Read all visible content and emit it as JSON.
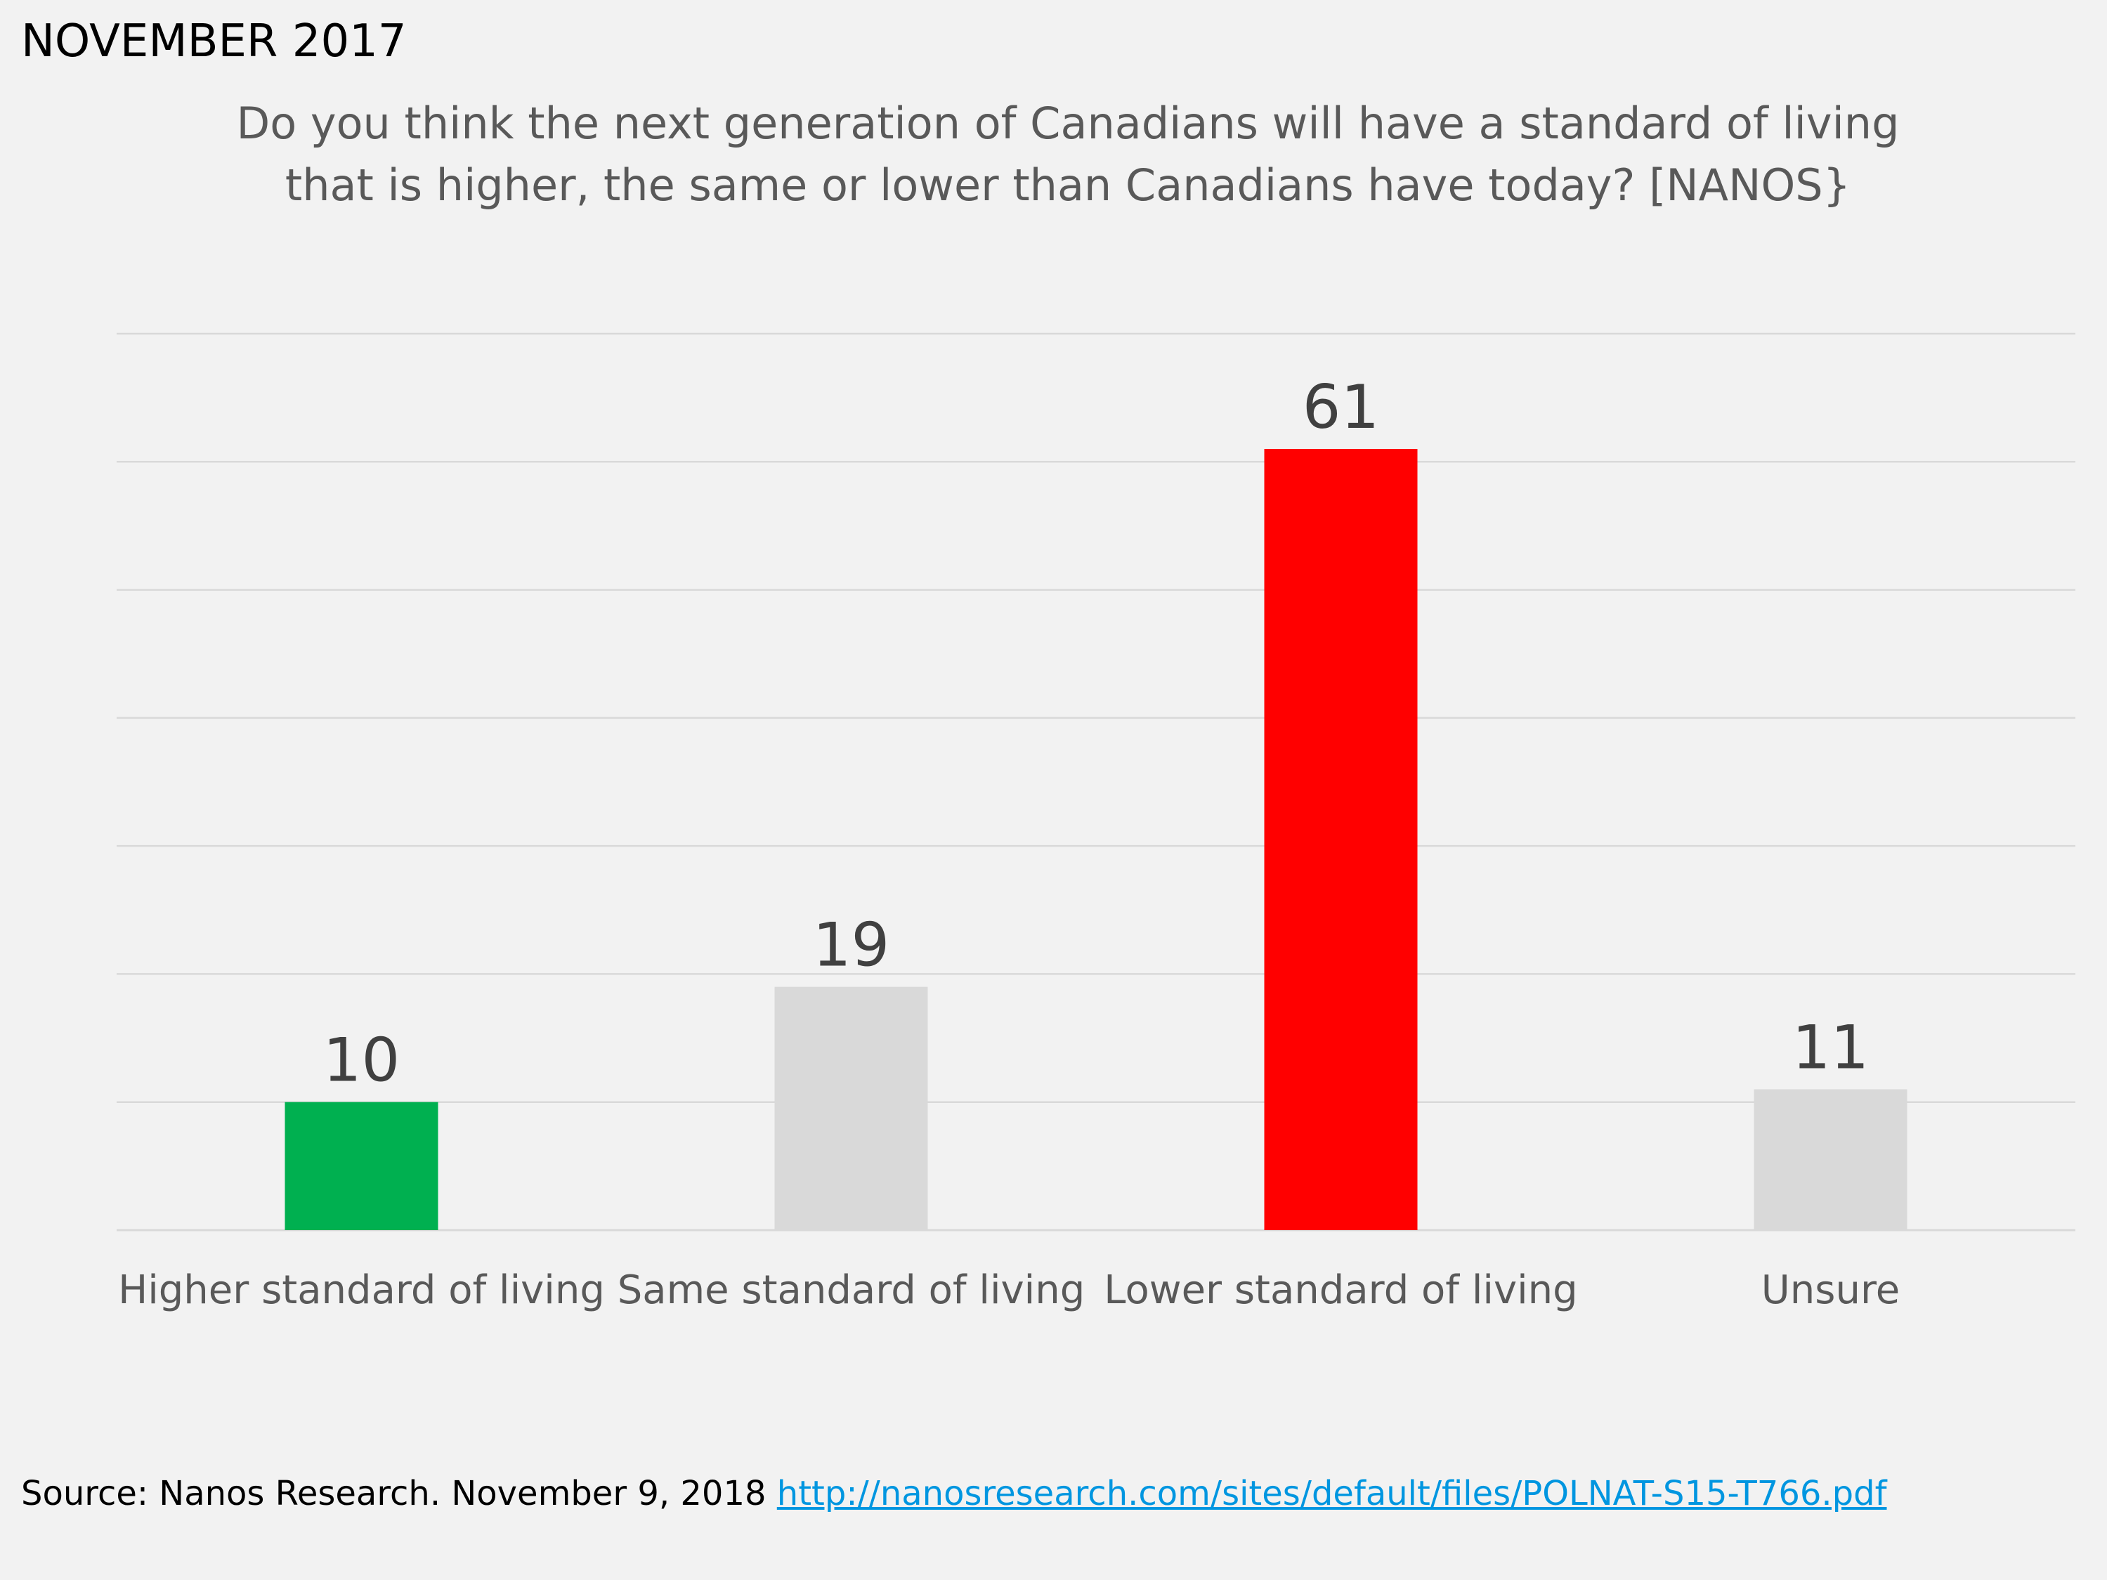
{
  "header": {
    "date_label": "NOVEMBER 2017",
    "title_line1": "Do you think the next generation of Canadians will have a standard of living",
    "title_line2": "that is higher, the same or lower than Canadians have today?  [NANOS}"
  },
  "chart_data": {
    "type": "bar",
    "categories": [
      "Higher standard of living",
      "Same standard of living",
      "Lower standard of living",
      "Unsure"
    ],
    "values": [
      10,
      19,
      61,
      11
    ],
    "colors": [
      "#00b050",
      "#d9d9d9",
      "#ff0000",
      "#d9d9d9"
    ],
    "ylim": [
      0,
      70
    ],
    "grid": true,
    "data_labels": true
  },
  "footer": {
    "source_text": "Source:  Nanos Research. November 9, 2018 ",
    "source_link": "http://nanosresearch.com/sites/default/files/POLNAT-S15-T766.pdf"
  }
}
